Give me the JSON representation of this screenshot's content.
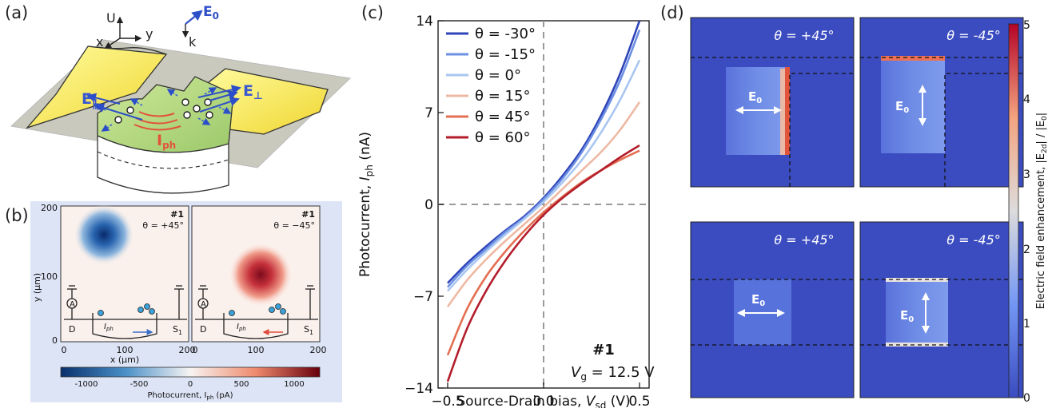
{
  "panels": {
    "a": {
      "label": "(a)",
      "axes": {
        "u": "U",
        "x": "x",
        "y": "y",
        "k": "k"
      },
      "field_labels": {
        "e0": "E",
        "e0_sub": "0",
        "e_par": "E",
        "e_par_sub": "∥",
        "e_perp": "E",
        "e_perp_sub": "⊥",
        "iph": "I",
        "iph_sub": "ph"
      }
    },
    "b": {
      "label": "(b)",
      "maps": [
        {
          "sample": "#1",
          "theta": "θ = +45°"
        },
        {
          "sample": "#1",
          "theta": "θ = −45°"
        }
      ],
      "y_axis_label": "y (μm)",
      "y_ticks": [
        "200",
        "100",
        "0"
      ],
      "x_axis_label": "x (μm)",
      "x_ticks_left": [
        "0",
        "100",
        "200"
      ],
      "x_ticks_right": [
        "0",
        "100",
        "200"
      ],
      "circuit": {
        "ammeter": "A",
        "drain": "D",
        "source": "S",
        "source_sub": "1",
        "iph": "I",
        "iph_sub": "ph"
      },
      "colorbar": {
        "ticks": [
          "-1000",
          "-500",
          "0",
          "500",
          "1000"
        ],
        "label": "Photocurrent, I",
        "label_sub": "ph",
        "label_unit": " (pA)"
      }
    },
    "c": {
      "label": "(c)",
      "annotation": {
        "sample": "#1",
        "gate": "V",
        "gate_sub": "g",
        "gate_value": " = 12.5 V"
      }
    },
    "d": {
      "label": "(d)",
      "maps": [
        {
          "theta": "θ = +45°",
          "field": "E",
          "field_sub": "0"
        },
        {
          "theta": "θ = -45°",
          "field": "E",
          "field_sub": "0"
        },
        {
          "theta": "θ = +45°",
          "field": "E",
          "field_sub": "0"
        },
        {
          "theta": "θ = -45°",
          "field": "E",
          "field_sub": "0"
        }
      ],
      "colorbar": {
        "ticks": [
          "5",
          "4",
          "3",
          "2",
          "1",
          "0"
        ],
        "label": "Electric field enhancement, |E",
        "label_sub": "2d",
        "label_mid": "| / |E",
        "label_sub2": "0",
        "label_end": "|"
      }
    }
  },
  "chart_data": {
    "type": "line",
    "xlabel": "Source-Drain bias, V_sd (V)",
    "ylabel": "Photocurrent, I_ph (nA)",
    "xlim": [
      -0.55,
      0.55
    ],
    "ylim": [
      -14,
      14
    ],
    "xticks": [
      -0.5,
      0.0,
      0.5
    ],
    "xtick_labels": [
      "−0.5",
      "0.0",
      "0.5"
    ],
    "yticks": [
      14,
      7,
      0,
      -7,
      -14
    ],
    "ytick_labels": [
      "14",
      "7",
      "0",
      "−7",
      "−14"
    ],
    "reference_lines": {
      "x": 0,
      "y": 0,
      "style": "dashed"
    },
    "legend_position": "top-left",
    "series": [
      {
        "name": "θ = -30°",
        "color": "#2f44b8",
        "x": [
          -0.5,
          -0.4,
          -0.3,
          -0.2,
          -0.1,
          0.0,
          0.1,
          0.2,
          0.3,
          0.4,
          0.5
        ],
        "y": [
          -6.0,
          -4.5,
          -3.2,
          -2.0,
          -0.9,
          0.5,
          2.2,
          4.2,
          6.8,
          10.0,
          14.0
        ]
      },
      {
        "name": "θ = -15°",
        "color": "#6c8fe3",
        "x": [
          -0.5,
          -0.4,
          -0.3,
          -0.2,
          -0.1,
          0.0,
          0.1,
          0.2,
          0.3,
          0.4,
          0.5
        ],
        "y": [
          -6.3,
          -4.7,
          -3.4,
          -2.1,
          -1.0,
          0.4,
          2.0,
          4.0,
          6.5,
          9.5,
          13.3
        ]
      },
      {
        "name": "θ = 0°",
        "color": "#a9c6f0",
        "x": [
          -0.5,
          -0.4,
          -0.3,
          -0.2,
          -0.1,
          0.0,
          0.1,
          0.2,
          0.3,
          0.4,
          0.5
        ],
        "y": [
          -6.6,
          -5.0,
          -3.6,
          -2.3,
          -1.1,
          0.2,
          1.7,
          3.4,
          5.5,
          8.0,
          11.0
        ]
      },
      {
        "name": "θ = 15°",
        "color": "#eeb9a3",
        "x": [
          -0.5,
          -0.4,
          -0.3,
          -0.2,
          -0.1,
          0.0,
          0.1,
          0.2,
          0.3,
          0.4,
          0.5
        ],
        "y": [
          -7.8,
          -5.8,
          -4.2,
          -2.8,
          -1.5,
          -0.2,
          1.2,
          2.6,
          4.0,
          5.7,
          7.8
        ]
      },
      {
        "name": "θ = 45°",
        "color": "#e46f53",
        "x": [
          -0.5,
          -0.4,
          -0.3,
          -0.2,
          -0.1,
          0.0,
          0.1,
          0.2,
          0.3,
          0.4,
          0.5
        ],
        "y": [
          -11.5,
          -8.0,
          -5.5,
          -3.6,
          -2.0,
          -0.6,
          0.6,
          1.7,
          2.6,
          3.4,
          4.1
        ]
      },
      {
        "name": "θ = 60°",
        "color": "#b41d2b",
        "x": [
          -0.5,
          -0.4,
          -0.3,
          -0.2,
          -0.1,
          0.0,
          0.1,
          0.2,
          0.3,
          0.4,
          0.5
        ],
        "y": [
          -13.5,
          -9.5,
          -6.6,
          -4.3,
          -2.4,
          -0.8,
          0.5,
          1.6,
          2.6,
          3.6,
          4.5
        ]
      }
    ]
  }
}
